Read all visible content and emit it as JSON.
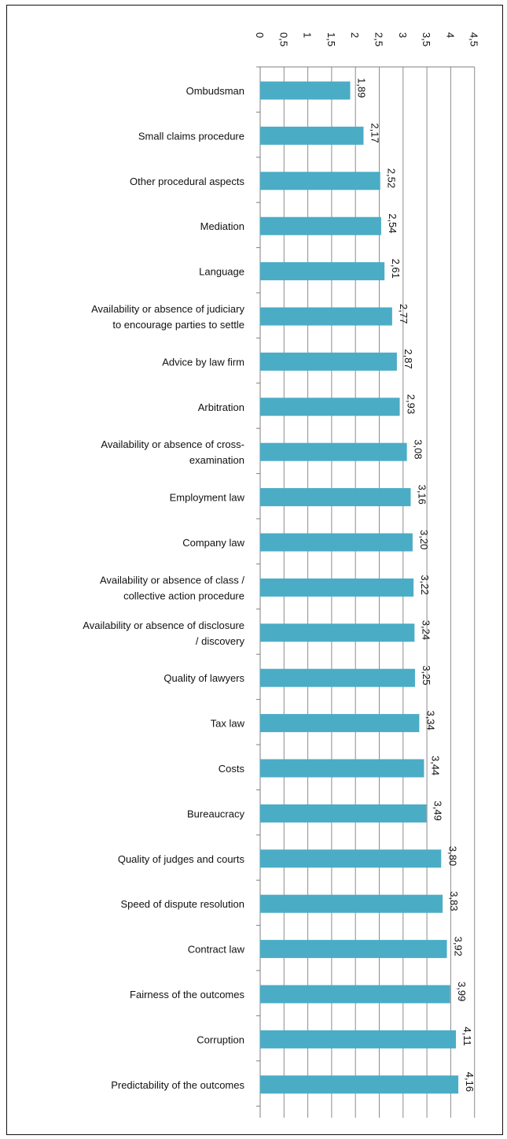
{
  "chart_data": {
    "type": "bar",
    "orientation": "horizontal",
    "title": "",
    "xlabel": "",
    "ylabel": "",
    "xlim": [
      0,
      4.5
    ],
    "grid": true,
    "legend": "none",
    "bar_color": "#4bacc6",
    "x_ticks": [
      "0",
      "0,5",
      "1",
      "1,5",
      "2",
      "2,5",
      "3",
      "3,5",
      "4",
      "4,5"
    ],
    "categories": [
      [
        "Ombudsman"
      ],
      [
        "Small claims procedure"
      ],
      [
        "Other procedural aspects"
      ],
      [
        "Mediation"
      ],
      [
        "Language"
      ],
      [
        "Availability or absence of judiciary",
        "to encourage parties to settle"
      ],
      [
        "Advice by law firm"
      ],
      [
        "Arbitration"
      ],
      [
        "Availability or absence of cross-",
        "examination"
      ],
      [
        "Employment law"
      ],
      [
        "Company law"
      ],
      [
        "Availability or absence of class /",
        "collective action procedure"
      ],
      [
        "Availability or absence of disclosure",
        "/ discovery"
      ],
      [
        "Quality of lawyers"
      ],
      [
        "Tax law"
      ],
      [
        "Costs"
      ],
      [
        "Bureaucracy"
      ],
      [
        "Quality of judges and courts"
      ],
      [
        "Speed of dispute resolution"
      ],
      [
        "Contract law"
      ],
      [
        "Fairness of the outcomes"
      ],
      [
        "Corruption"
      ],
      [
        "Predictability of the outcomes"
      ]
    ],
    "values": [
      1.89,
      2.17,
      2.52,
      2.54,
      2.61,
      2.77,
      2.87,
      2.93,
      3.08,
      3.16,
      3.2,
      3.22,
      3.24,
      3.25,
      3.34,
      3.44,
      3.49,
      3.8,
      3.83,
      3.92,
      3.99,
      4.11,
      4.16
    ],
    "value_labels": [
      "1,89",
      "2,17",
      "2,52",
      "2,54",
      "2,61",
      "2,77",
      "2,87",
      "2,93",
      "3,08",
      "3,16",
      "3,20",
      "3,22",
      "3,24",
      "3,25",
      "3,34",
      "3,44",
      "3,49",
      "3,80",
      "3,83",
      "3,92",
      "3,99",
      "4,11",
      "4,16"
    ]
  }
}
